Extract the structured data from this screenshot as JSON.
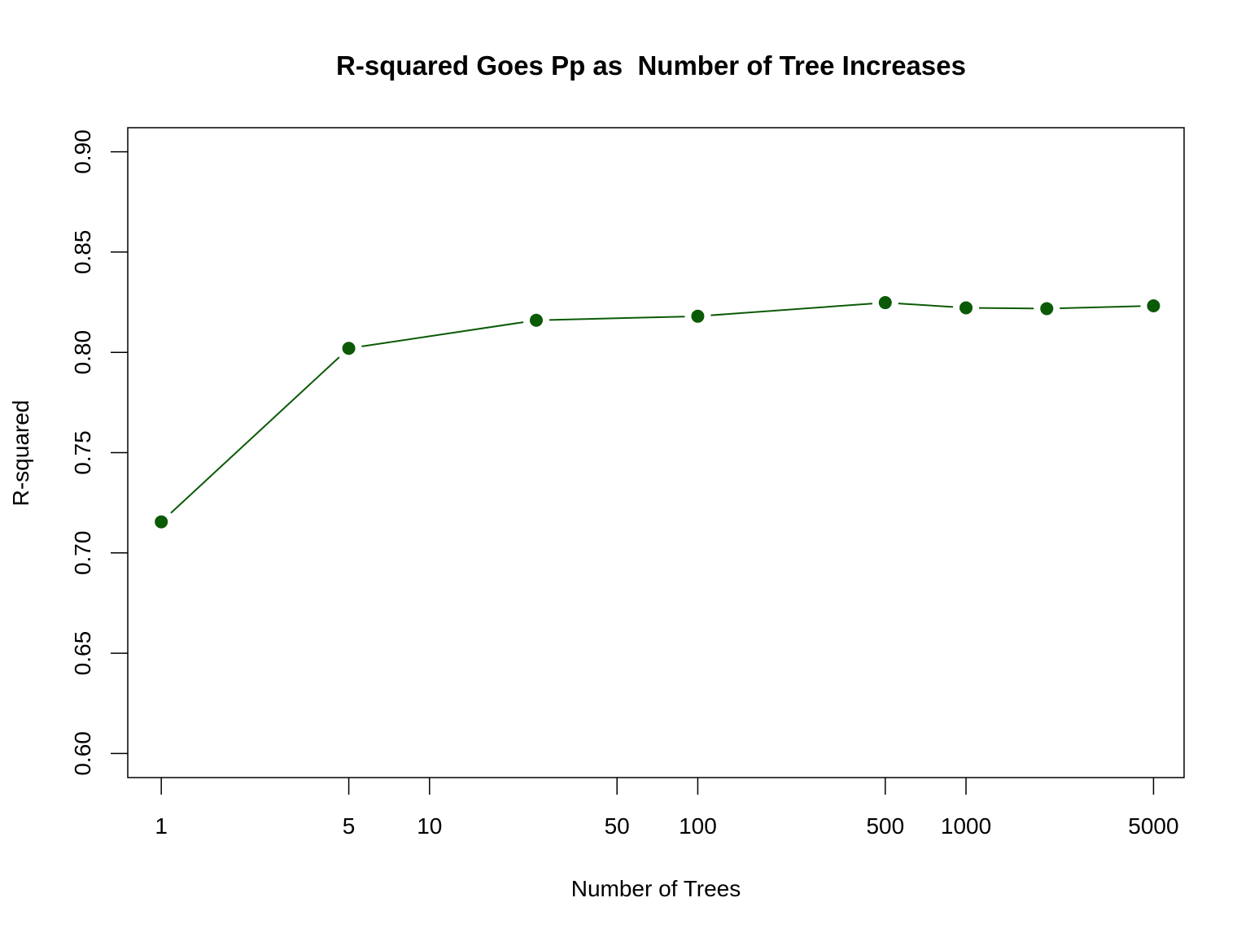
{
  "chart_data": {
    "type": "line",
    "title": "R-squared Goes Pp as  Number of Tree Increases",
    "xlabel": "Number of Trees",
    "ylabel": "R-squared",
    "x_scale": "log",
    "xlim": [
      0.75,
      6500
    ],
    "ylim": [
      0.588,
      0.912
    ],
    "x_ticks": [
      1,
      5,
      10,
      50,
      100,
      500,
      1000,
      5000
    ],
    "x_tick_labels": [
      "1",
      "5",
      "10",
      "50",
      "100",
      "500",
      "1000",
      "5000"
    ],
    "y_ticks": [
      0.6,
      0.65,
      0.7,
      0.75,
      0.8,
      0.85,
      0.9
    ],
    "y_tick_labels": [
      "0.60",
      "0.65",
      "0.70",
      "0.75",
      "0.80",
      "0.85",
      "0.90"
    ],
    "grid": false,
    "legend": "none",
    "series": [
      {
        "color": "#0b5a06",
        "marker": "filled-circle",
        "points": [
          {
            "x": 1,
            "y": 0.7155
          },
          {
            "x": 5,
            "y": 0.802
          },
          {
            "x": 25,
            "y": 0.816
          },
          {
            "x": 100,
            "y": 0.818
          },
          {
            "x": 500,
            "y": 0.8248
          },
          {
            "x": 1000,
            "y": 0.8222
          },
          {
            "x": 2000,
            "y": 0.8218
          },
          {
            "x": 5000,
            "y": 0.8232
          }
        ]
      }
    ]
  }
}
